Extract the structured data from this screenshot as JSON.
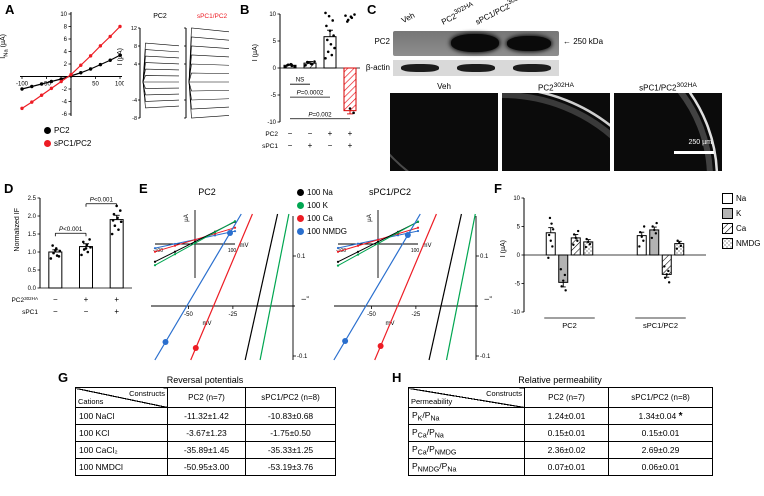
{
  "panel_labels": {
    "A": "A",
    "B": "B",
    "C": "C",
    "D": "D",
    "E": "E",
    "F": "F",
    "G": "G",
    "H": "H"
  },
  "colors": {
    "pc2_black": "#000000",
    "spc1_red": "#ed1c24",
    "ion_Na": "#000000",
    "ion_K": "#00a651",
    "ion_Ca": "#ed1c24",
    "ion_NMDG": "#2a6fce"
  },
  "panelA": {
    "legend": [
      {
        "label": "PC2",
        "color": "#000000"
      },
      {
        "label": "sPC1/PC2",
        "color": "#ed1c24"
      }
    ]
  },
  "panelC": {
    "lanes": [
      "Veh",
      "PC2^302HA",
      "sPC1/PC2^302HA"
    ],
    "blot_label": "PC2",
    "size_marker": "← 250 kDa",
    "actin_label": "β-actin",
    "if_labels": [
      "Veh",
      "PC2^302HA",
      "sPC1/PC2^302HA"
    ],
    "scale_bar": "250 µm"
  },
  "panelE": {
    "legend": [
      {
        "label": "100 Na",
        "color": "#000000"
      },
      {
        "label": "100 K",
        "color": "#00a651"
      },
      {
        "label": "100 Ca",
        "color": "#ed1c24"
      },
      {
        "label": "100 NMDG",
        "color": "#2a6fce"
      }
    ]
  },
  "chart_data": [
    {
      "id": "A_iv",
      "type": "line",
      "ylabel": "I_Na (µA)",
      "xlim": [
        -100,
        100
      ],
      "ylim": [
        -6,
        10
      ],
      "xticks": [
        -100,
        -50,
        50,
        100
      ],
      "yticks": [
        -6,
        -4,
        -2,
        2,
        4,
        6,
        8,
        10
      ],
      "series": [
        {
          "name": "PC2",
          "color": "#000000",
          "x": [
            -100,
            -80,
            -60,
            -40,
            -20,
            0,
            20,
            40,
            60,
            80,
            100
          ],
          "y": [
            -2.0,
            -1.6,
            -1.2,
            -0.8,
            -0.4,
            0.1,
            0.6,
            1.2,
            1.9,
            2.6,
            3.4
          ]
        },
        {
          "name": "sPC1/PC2",
          "color": "#ed1c24",
          "x": [
            -100,
            -80,
            -60,
            -40,
            -20,
            0,
            20,
            40,
            60,
            80,
            100
          ],
          "y": [
            -5.1,
            -4.1,
            -3.0,
            -1.9,
            -0.8,
            0.3,
            1.8,
            3.3,
            4.9,
            6.4,
            8.0
          ]
        }
      ]
    },
    {
      "id": "A_traces",
      "type": "traces",
      "ylabel": "I (µA)",
      "ylim": [
        -8,
        12
      ],
      "yticks": [
        12,
        8,
        4,
        -4,
        -8
      ],
      "n_traces": 11,
      "titles": [
        {
          "text": "PC2",
          "color": "#000000"
        },
        {
          "text": "sPC1/PC2",
          "color": "#ed1c24"
        }
      ]
    },
    {
      "id": "B_current",
      "type": "bar",
      "ylabel": "I (µA)",
      "ylim": [
        -10,
        10
      ],
      "yticks": [
        -10,
        -5,
        0,
        5,
        10
      ],
      "values": [
        0.5,
        0.9,
        5.8,
        -7.9
      ],
      "errors": [
        0.2,
        0.3,
        1.2,
        0.6
      ],
      "styles": [
        "open",
        "hatch-black",
        "open",
        "hatch-red"
      ],
      "scatter": [
        [
          0.2,
          0.4,
          0.6,
          0.3,
          0.7,
          0.5
        ],
        [
          0.5,
          0.7,
          1.0,
          1.2,
          0.8,
          1.1
        ],
        [
          1.8,
          2.4,
          3.0,
          3.7,
          4.4,
          5.2,
          6.0,
          6.9,
          7.8,
          8.8,
          9.6,
          10.2
        ],
        [
          9.7,
          9.3,
          8.9,
          9.9,
          9.5,
          8.6,
          -8.3,
          -7.5
        ]
      ],
      "condition_rows": [
        {
          "label": "PC2",
          "values": [
            "−",
            "−",
            "+",
            "+"
          ]
        },
        {
          "label": "sPC1",
          "values": [
            "−",
            "+",
            "−",
            "+"
          ]
        }
      ],
      "annotations": [
        {
          "text": "NS",
          "from": 0,
          "to": 1,
          "y": -3.0
        },
        {
          "text": "P=0.0002",
          "from": 0,
          "to": 2,
          "y": -5.4
        },
        {
          "text": "P=0.002",
          "from": 0,
          "to": 3,
          "y": -9.4
        }
      ]
    },
    {
      "id": "D_if",
      "type": "bar",
      "ylabel": "Normalized IF",
      "ylim": [
        0,
        2.5
      ],
      "yticks": [
        0,
        0.5,
        1,
        1.5,
        2,
        2.5
      ],
      "ytick_labels": [
        "0.0",
        "0.5",
        "1.0",
        "1.5",
        "2.0",
        "2.5"
      ],
      "values": [
        1.0,
        1.15,
        1.9
      ],
      "errors": [
        0.06,
        0.08,
        0.12
      ],
      "styles": [
        "open",
        "open",
        "open"
      ],
      "scatter": [
        [
          0.82,
          0.9,
          0.97,
          1.03,
          1.1,
          1.18,
          0.88,
          1.05
        ],
        [
          0.92,
          1.0,
          1.07,
          1.13,
          1.2,
          1.28,
          1.35,
          1.1
        ],
        [
          1.5,
          1.62,
          1.73,
          1.84,
          1.95,
          2.05,
          2.15,
          2.28,
          1.88
        ]
      ],
      "condition_rows": [
        {
          "label": "PC2^302HA",
          "values": [
            "−",
            "+",
            "+"
          ]
        },
        {
          "label": "sPC1",
          "values": [
            "−",
            "−",
            "+"
          ]
        }
      ],
      "annotations": [
        {
          "text": "P<0.001",
          "from": 0,
          "to": 1,
          "y": 1.52,
          "tick": 3
        },
        {
          "text": "P<0.001",
          "from": 1,
          "to": 2,
          "y": 2.34,
          "tick": 3
        }
      ]
    },
    {
      "id": "E_pc2",
      "type": "line",
      "title": "PC2",
      "xlabel": "mV",
      "ylabel": "µA",
      "y2label": "I_x",
      "mini_xticks": [
        "-100",
        "100"
      ],
      "x2ticks": [
        -50,
        -25
      ],
      "y2ticks": [
        "0.1",
        "-0.1"
      ],
      "reversals": {
        "Na": -11.32,
        "K": -3.67,
        "Ca": -35.89,
        "NMDG": -50.95
      },
      "dots": [
        {
          "ion": "Ca",
          "i": -0.084
        },
        {
          "ion": "NMDG",
          "i": -0.072
        },
        {
          "ion": "NMDG",
          "i": 0.146
        }
      ]
    },
    {
      "id": "E_spc1pc2",
      "type": "line",
      "title": "sPC1/PC2",
      "xlabel": "mV",
      "ylabel": "µA",
      "y2label": "I_x",
      "mini_xticks": [
        "-100",
        "100"
      ],
      "x2ticks": [
        -50,
        -25
      ],
      "y2ticks": [
        "0.1",
        "-0.1"
      ],
      "reversals": {
        "Na": -10.83,
        "K": -1.75,
        "Ca": -35.33,
        "NMDG": -53.19
      },
      "dots": [
        {
          "ion": "Ca",
          "i": -0.08
        },
        {
          "ion": "NMDG",
          "i": -0.07
        },
        {
          "ion": "NMDG",
          "i": 0.142
        }
      ]
    },
    {
      "id": "F_ion_currents",
      "type": "grouped-bar",
      "ylabel": "I (µA)",
      "ylim": [
        -10,
        10
      ],
      "yticks": [
        -10,
        -5,
        0,
        5,
        10
      ],
      "groups": [
        "PC2",
        "sPC1/PC2"
      ],
      "series": [
        {
          "name": "Na",
          "style": "open",
          "values": [
            3.9,
            3.4
          ],
          "errors": [
            0.9,
            0.6
          ],
          "scatter": [
            [
              -0.5,
              1.5,
              2.5,
              3.5,
              4.5,
              5.5,
              6.5
            ],
            [
              1.5,
              2.5,
              3.2,
              4.0,
              5.0
            ]
          ]
        },
        {
          "name": "K",
          "style": "gray",
          "values": [
            -4.8,
            4.4
          ],
          "errors": [
            0.8,
            0.5
          ],
          "scatter": [
            [
              -2.5,
              -3.5,
              -4.5,
              -5.5,
              -6.2
            ],
            [
              3.0,
              3.8,
              4.4,
              5.0,
              5.6
            ]
          ]
        },
        {
          "name": "Ca",
          "style": "hatch-black",
          "values": [
            3.0,
            -3.4
          ],
          "errors": [
            0.6,
            0.5
          ],
          "scatter": [
            [
              1.8,
              2.5,
              3.0,
              3.6,
              4.2
            ],
            [
              -2.0,
              -2.8,
              -3.4,
              -4.0,
              -4.8
            ]
          ]
        },
        {
          "name": "NMDG",
          "style": "stipple",
          "values": [
            2.3,
            2.0
          ],
          "errors": [
            0.4,
            0.4
          ],
          "scatter": [
            [
              1.4,
              1.9,
              2.3,
              2.8
            ],
            [
              1.1,
              1.6,
              2.1,
              2.5
            ]
          ]
        }
      ]
    }
  ],
  "tables": {
    "G": {
      "title": "Reversal potentials",
      "corner": {
        "top": "Constructs",
        "bottom": "Cations"
      },
      "columns": [
        "PC2 (n=7)",
        "sPC1/PC2 (n=8)"
      ],
      "rows": [
        {
          "label": "100 NaCl",
          "values": [
            "-11.32±1.42",
            "-10.83±0.68"
          ]
        },
        {
          "label": "100 KCl",
          "values": [
            "-3.67±1.23",
            "-1.75±0.50"
          ]
        },
        {
          "label": "100 CaCl₂",
          "values": [
            "-35.89±1.45",
            "-35.33±1.25"
          ]
        },
        {
          "label": "100 NMDCl",
          "values": [
            "-50.95±3.00",
            "-53.19±3.76"
          ]
        }
      ]
    },
    "H": {
      "title": "Relative permeability",
      "corner": {
        "top": "Constructs",
        "bottom": "Permeability"
      },
      "columns": [
        "PC2 (n=7)",
        "sPC1/PC2 (n=8)"
      ],
      "rows": [
        {
          "label": "P_K/P_Na",
          "values": [
            "1.24±0.01",
            "1.34±0.04 *"
          ]
        },
        {
          "label": "P_Ca/P_Na",
          "values": [
            "0.15±0.01",
            "0.15±0.01"
          ]
        },
        {
          "label": "P_Ca/P_NMDG",
          "values": [
            "2.36±0.02",
            "2.69±0.29"
          ]
        },
        {
          "label": "P_NMDG/P_Na",
          "values": [
            "0.07±0.01",
            "0.06±0.01"
          ]
        }
      ]
    }
  }
}
